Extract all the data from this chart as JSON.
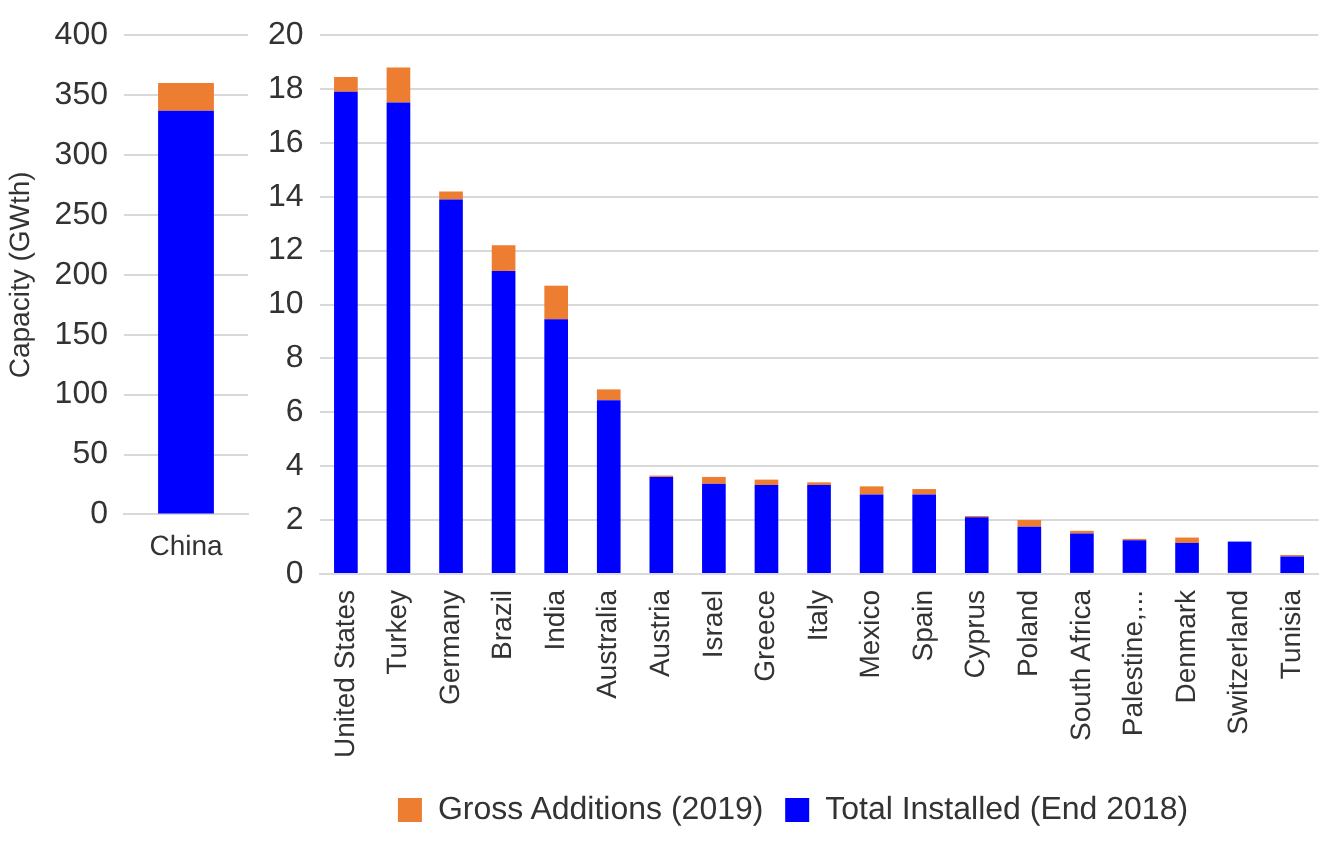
{
  "chart_data": [
    {
      "type": "bar",
      "ylabel": "Capacity (GWth)",
      "categories": [
        "China"
      ],
      "stacked": true,
      "grid": "y",
      "legend": false,
      "ylim": [
        0,
        400
      ],
      "yticks": [
        0,
        50,
        100,
        150,
        200,
        250,
        300,
        350,
        400
      ],
      "series": [
        {
          "color": "#0000ff",
          "values": [
            337
          ]
        },
        {
          "color": "#ed7d31",
          "values": [
            23
          ]
        }
      ]
    },
    {
      "type": "bar",
      "categories": [
        "United States",
        "Turkey",
        "Germany",
        "Brazil",
        "India",
        "Australia",
        "Austria",
        "Israel",
        "Greece",
        "Italy",
        "Mexico",
        "Spain",
        "Cyprus",
        "Poland",
        "South Africa",
        "Palestine,...",
        "Denmark",
        "Switzerland",
        "Tunisia"
      ],
      "stacked": true,
      "grid": "y",
      "legend": "bottom",
      "ylim": [
        0,
        20
      ],
      "yticks": [
        0,
        2,
        4,
        6,
        8,
        10,
        12,
        14,
        16,
        18,
        20
      ],
      "series": [
        {
          "name": "Total Installed (End 2018)",
          "color": "#0000ff",
          "values": [
            17.9,
            17.5,
            13.9,
            11.25,
            9.45,
            6.45,
            3.6,
            3.35,
            3.3,
            3.3,
            2.95,
            2.95,
            2.1,
            1.75,
            1.5,
            1.25,
            1.15,
            1.2,
            0.65
          ]
        },
        {
          "name": "Gross Additions (2019)",
          "color": "#ed7d31",
          "values": [
            0.55,
            1.3,
            0.3,
            0.95,
            1.25,
            0.4,
            0.05,
            0.25,
            0.2,
            0.1,
            0.3,
            0.2,
            0.05,
            0.25,
            0.1,
            0.05,
            0.2,
            0,
            0.05
          ]
        }
      ]
    }
  ]
}
